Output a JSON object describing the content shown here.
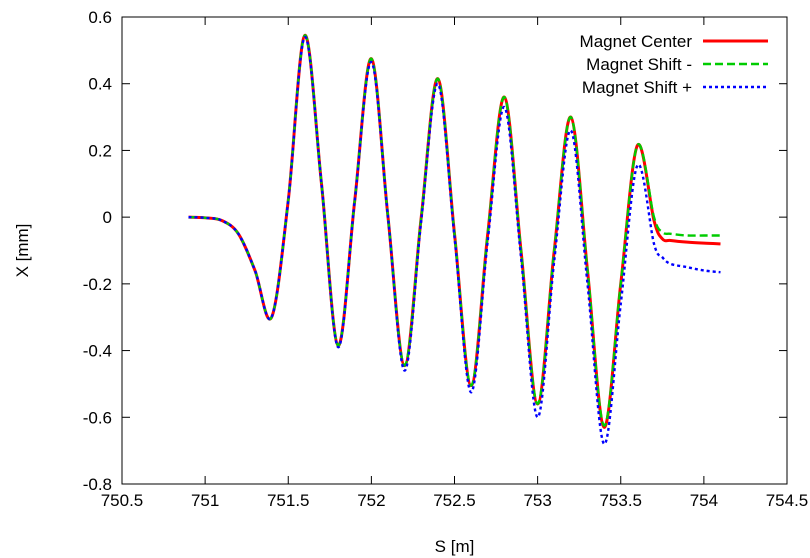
{
  "chart_data": {
    "type": "line",
    "title": "",
    "xlabel": "S [m]",
    "ylabel": "X [mm]",
    "xlim": [
      750.5,
      754.5
    ],
    "ylim": [
      -0.8,
      0.6
    ],
    "x_ticks": [
      750.5,
      751,
      751.5,
      752,
      752.5,
      753,
      753.5,
      754,
      754.5
    ],
    "x_tick_labels": [
      "750.5",
      "751",
      "751.5",
      "752",
      "752.5",
      "753",
      "753.5",
      "754",
      "754.5"
    ],
    "y_ticks": [
      -0.8,
      -0.6,
      -0.4,
      -0.2,
      0,
      0.2,
      0.4,
      0.6
    ],
    "y_tick_labels": [
      "-0.8",
      "-0.6",
      "-0.4",
      "-0.2",
      "0",
      "0.2",
      "0.4",
      "0.6"
    ],
    "grid": false,
    "legend_position": "top-right",
    "series": [
      {
        "name": "Magnet Center",
        "color": "#ff0000",
        "style": "solid",
        "points": [
          [
            750.9,
            0
          ],
          [
            751.0,
            -0.002
          ],
          [
            751.1,
            -0.01
          ],
          [
            751.2,
            -0.05
          ],
          [
            751.3,
            -0.16
          ],
          [
            751.4,
            -0.3
          ],
          [
            751.5,
            0.05
          ],
          [
            751.6,
            0.545
          ],
          [
            751.7,
            0.1
          ],
          [
            751.8,
            -0.385
          ],
          [
            751.9,
            0.05
          ],
          [
            752.0,
            0.475
          ],
          [
            752.1,
            0.0
          ],
          [
            752.2,
            -0.445
          ],
          [
            752.3,
            0.0
          ],
          [
            752.4,
            0.415
          ],
          [
            752.5,
            -0.05
          ],
          [
            752.6,
            -0.505
          ],
          [
            752.7,
            -0.05
          ],
          [
            752.8,
            0.36
          ],
          [
            752.9,
            -0.1
          ],
          [
            753.0,
            -0.56
          ],
          [
            753.1,
            -0.1
          ],
          [
            753.2,
            0.3
          ],
          [
            753.3,
            -0.16
          ],
          [
            753.4,
            -0.63
          ],
          [
            753.5,
            -0.2
          ],
          [
            753.6,
            0.215
          ],
          [
            753.7,
            -0.01
          ],
          [
            753.75,
            -0.065
          ],
          [
            753.8,
            -0.07
          ],
          [
            753.9,
            -0.075
          ],
          [
            754.0,
            -0.078
          ],
          [
            754.1,
            -0.08
          ]
        ]
      },
      {
        "name": "Magnet Shift -",
        "color": "#00cc00",
        "style": "dashed",
        "points": [
          [
            750.9,
            0
          ],
          [
            751.0,
            -0.002
          ],
          [
            751.1,
            -0.01
          ],
          [
            751.2,
            -0.05
          ],
          [
            751.3,
            -0.16
          ],
          [
            751.4,
            -0.3
          ],
          [
            751.5,
            0.05
          ],
          [
            751.6,
            0.545
          ],
          [
            751.7,
            0.1
          ],
          [
            751.8,
            -0.385
          ],
          [
            751.9,
            0.05
          ],
          [
            752.0,
            0.475
          ],
          [
            752.1,
            0.0
          ],
          [
            752.2,
            -0.445
          ],
          [
            752.3,
            0.0
          ],
          [
            752.4,
            0.415
          ],
          [
            752.5,
            -0.05
          ],
          [
            752.6,
            -0.505
          ],
          [
            752.7,
            -0.05
          ],
          [
            752.8,
            0.36
          ],
          [
            752.9,
            -0.1
          ],
          [
            753.0,
            -0.56
          ],
          [
            753.1,
            -0.1
          ],
          [
            753.2,
            0.3
          ],
          [
            753.3,
            -0.16
          ],
          [
            753.4,
            -0.625
          ],
          [
            753.5,
            -0.2
          ],
          [
            753.6,
            0.215
          ],
          [
            753.7,
            0.0
          ],
          [
            753.75,
            -0.045
          ],
          [
            753.8,
            -0.05
          ],
          [
            753.9,
            -0.055
          ],
          [
            754.0,
            -0.055
          ],
          [
            754.1,
            -0.055
          ]
        ]
      },
      {
        "name": "Magnet Shift +",
        "color": "#0000ff",
        "style": "dotted",
        "points": [
          [
            750.9,
            0
          ],
          [
            751.0,
            -0.002
          ],
          [
            751.1,
            -0.01
          ],
          [
            751.2,
            -0.05
          ],
          [
            751.3,
            -0.16
          ],
          [
            751.4,
            -0.3
          ],
          [
            751.5,
            0.05
          ],
          [
            751.6,
            0.54
          ],
          [
            751.7,
            0.1
          ],
          [
            751.8,
            -0.39
          ],
          [
            751.9,
            0.05
          ],
          [
            752.0,
            0.465
          ],
          [
            752.1,
            0.0
          ],
          [
            752.2,
            -0.46
          ],
          [
            752.3,
            -0.01
          ],
          [
            752.4,
            0.4
          ],
          [
            752.5,
            -0.06
          ],
          [
            752.6,
            -0.525
          ],
          [
            752.7,
            -0.07
          ],
          [
            752.8,
            0.33
          ],
          [
            752.9,
            -0.12
          ],
          [
            753.0,
            -0.6
          ],
          [
            753.1,
            -0.13
          ],
          [
            753.2,
            0.26
          ],
          [
            753.3,
            -0.2
          ],
          [
            753.4,
            -0.68
          ],
          [
            753.5,
            -0.26
          ],
          [
            753.6,
            0.155
          ],
          [
            753.7,
            -0.08
          ],
          [
            753.75,
            -0.12
          ],
          [
            753.8,
            -0.14
          ],
          [
            753.9,
            -0.15
          ],
          [
            754.0,
            -0.16
          ],
          [
            754.1,
            -0.165
          ]
        ]
      }
    ]
  }
}
